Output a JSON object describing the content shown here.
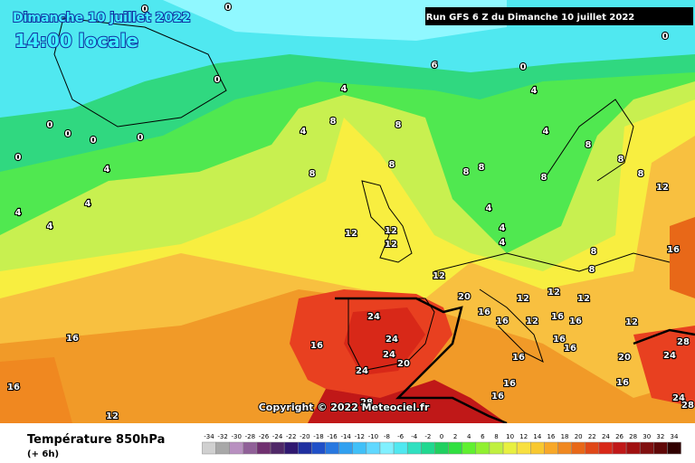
{
  "header": {
    "date_title": "Dimanche 10 juillet 2022",
    "time_title": "14:00 locale",
    "run_info": "Run GFS 6 Z du Dimanche 10 juillet 2022"
  },
  "copyright": "Copyright © 2022 Meteociel.fr",
  "footer": {
    "title": "Température 850hPa",
    "step": "(+ 6h)"
  },
  "colorbar": {
    "values": [
      -34,
      -32,
      -30,
      -28,
      -26,
      -24,
      -22,
      -20,
      -18,
      -16,
      -14,
      -12,
      -10,
      -8,
      -6,
      -4,
      -2,
      0,
      2,
      4,
      6,
      8,
      10,
      12,
      14,
      16,
      18,
      20,
      22,
      24,
      26,
      28,
      30,
      32,
      34
    ],
    "colors": [
      "#d0d0d0",
      "#a8a8a8",
      "#b890c0",
      "#906098",
      "#703070",
      "#502868",
      "#301870",
      "#2030a0",
      "#2050c8",
      "#2878e0",
      "#30a0f0",
      "#40c0f8",
      "#60d8ff",
      "#80f0ff",
      "#50e8f0",
      "#30e0c0",
      "#20d890",
      "#20d060",
      "#30e040",
      "#60f030",
      "#90f030",
      "#c0f040",
      "#e8f040",
      "#f8e040",
      "#f8c830",
      "#f8a828",
      "#f08820",
      "#e86818",
      "#e04818",
      "#d82818",
      "#c01818",
      "#a01010",
      "#801010",
      "#600808",
      "#300000"
    ]
  },
  "contour_labels": [
    0,
    0,
    0,
    0,
    0,
    0,
    0,
    0,
    0,
    0,
    6,
    4,
    4,
    4,
    8,
    8,
    8,
    8,
    4,
    4,
    4,
    4,
    8,
    8,
    8,
    8,
    8,
    12,
    12,
    12,
    12,
    12,
    20,
    12,
    12,
    12,
    12,
    16,
    16,
    16,
    12,
    16,
    16,
    24,
    24,
    24,
    20,
    24,
    16,
    16,
    16,
    12,
    28,
    16,
    16,
    16,
    16,
    16,
    20,
    24,
    28,
    24,
    28,
    16,
    8,
    8,
    4,
    4,
    4,
    8,
    4
  ]
}
